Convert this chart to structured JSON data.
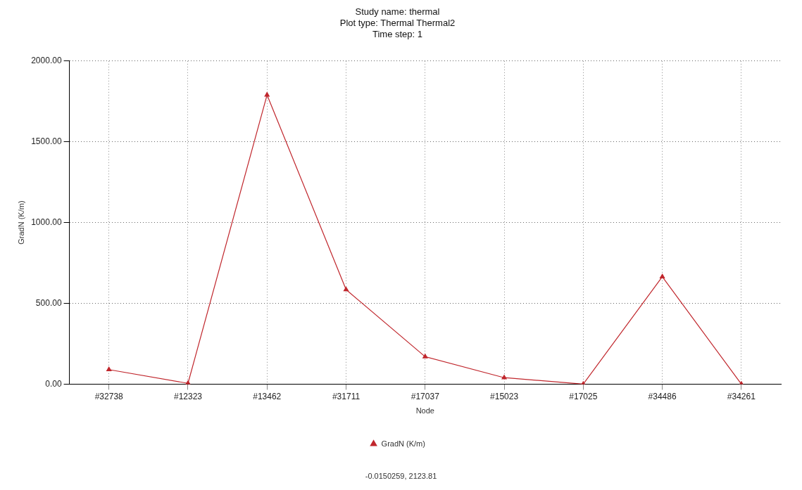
{
  "chart_data": {
    "type": "line",
    "title": "Study name: thermal\nPlot type: Thermal Thermal2\nTime step: 1",
    "xlabel": "Node",
    "ylabel": "GradN (K/m)",
    "categories": [
      "#32738",
      "#12323",
      "#13462",
      "#31711",
      "#17037",
      "#15023",
      "#17025",
      "#34486",
      "#34261"
    ],
    "series": [
      {
        "name": "GradN (K/m)",
        "color": "#c0262c",
        "values": [
          90,
          5,
          1790,
          585,
          170,
          40,
          0,
          665,
          0
        ]
      }
    ],
    "ylim": [
      0,
      2000
    ],
    "yticks": [
      {
        "value": 0,
        "label": "0.00"
      },
      {
        "value": 500,
        "label": "500.00"
      },
      {
        "value": 1000,
        "label": "1000.00"
      },
      {
        "value": 1500,
        "label": "1500.00"
      },
      {
        "value": 2000,
        "label": "2000.00"
      }
    ],
    "grid": true,
    "legend": "bottom",
    "marker": "triangle",
    "line_style": "solid",
    "annotations": [
      "-0.0150259, 2123.81"
    ]
  }
}
